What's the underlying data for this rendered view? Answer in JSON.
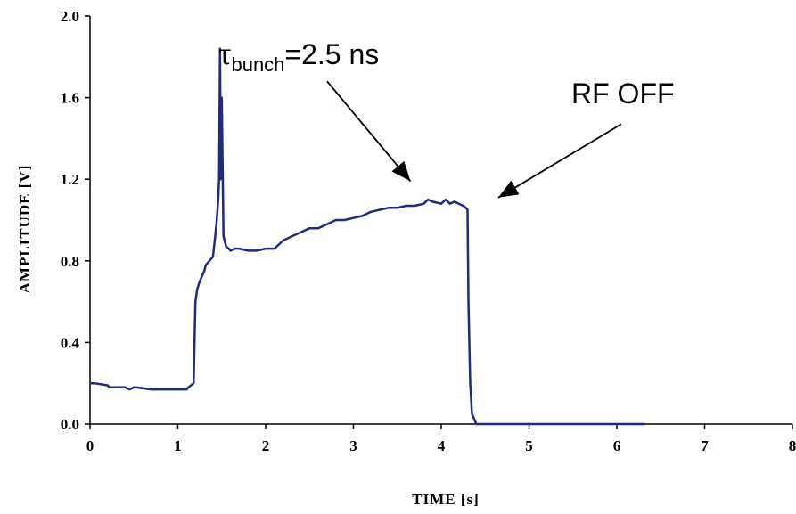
{
  "chart_data": {
    "type": "line",
    "xlabel": "TIME [s]",
    "ylabel": "AMPLITUDE [V]",
    "xlim": [
      0,
      8
    ],
    "ylim": [
      0,
      2.0
    ],
    "x_ticks": [
      "0",
      "1",
      "2",
      "3",
      "4",
      "5",
      "6",
      "7",
      "8"
    ],
    "y_ticks": [
      "0.0",
      "0.4",
      "0.8",
      "1.2",
      "1.6",
      "2.0"
    ],
    "grid": false,
    "line_color": "#1f2a80",
    "series": [
      {
        "x": [
          0,
          0.05,
          0.2,
          0.22,
          0.4,
          0.45,
          0.5,
          0.52,
          0.7,
          0.72,
          1.1,
          1.12,
          1.18,
          1.2,
          1.22,
          1.25,
          1.3,
          1.32,
          1.36,
          1.4,
          1.42,
          1.44,
          1.46,
          1.47,
          1.48,
          1.49,
          1.5,
          1.52,
          1.55,
          1.58,
          1.6,
          1.65,
          1.7,
          1.8,
          1.9,
          2.0,
          2.1,
          2.2,
          2.3,
          2.4,
          2.5,
          2.6,
          2.7,
          2.8,
          2.9,
          3.0,
          3.1,
          3.2,
          3.3,
          3.4,
          3.5,
          3.6,
          3.7,
          3.8,
          3.85,
          3.9,
          4.0,
          4.05,
          4.1,
          4.15,
          4.2,
          4.25,
          4.28,
          4.3,
          4.31,
          4.33,
          4.35,
          4.4,
          5.3,
          5.35,
          6.25,
          6.32
        ],
        "y": [
          0.2,
          0.2,
          0.19,
          0.18,
          0.18,
          0.17,
          0.18,
          0.18,
          0.17,
          0.17,
          0.17,
          0.18,
          0.2,
          0.6,
          0.66,
          0.7,
          0.75,
          0.78,
          0.8,
          0.82,
          0.9,
          0.98,
          1.1,
          1.2,
          1.84,
          1.2,
          1.6,
          0.92,
          0.87,
          0.86,
          0.85,
          0.86,
          0.86,
          0.85,
          0.85,
          0.86,
          0.86,
          0.9,
          0.92,
          0.94,
          0.96,
          0.96,
          0.98,
          1.0,
          1.0,
          1.01,
          1.02,
          1.04,
          1.05,
          1.06,
          1.06,
          1.07,
          1.07,
          1.08,
          1.1,
          1.09,
          1.08,
          1.1,
          1.08,
          1.09,
          1.08,
          1.07,
          1.06,
          1.05,
          0.6,
          0.2,
          0.05,
          0.0,
          0.0,
          0.0,
          0.0,
          0.0
        ]
      }
    ],
    "annotations": [
      {
        "text_main": "τ",
        "text_sub": "bunch",
        "text_rest": "=2.5 ns",
        "arrow_from": [
          2.7,
          1.68
        ],
        "arrow_to": [
          3.65,
          1.19
        ]
      },
      {
        "text": "RF OFF",
        "arrow_from": [
          6.05,
          1.47
        ],
        "arrow_to": [
          4.65,
          1.11
        ]
      }
    ]
  }
}
